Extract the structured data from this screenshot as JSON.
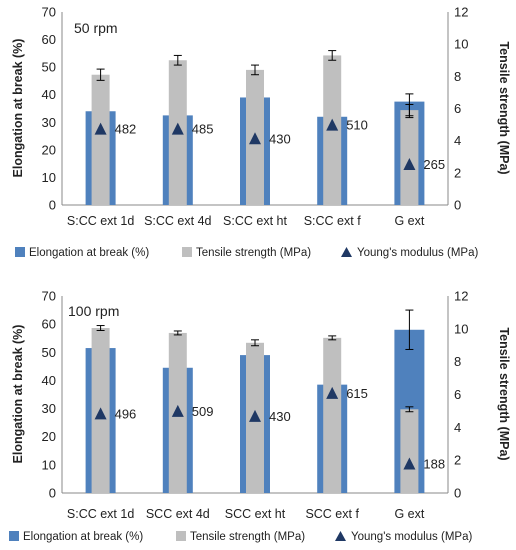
{
  "chart_data": [
    {
      "type": "bar",
      "annotation": "50 rpm",
      "categories": [
        "S:CC ext 1d",
        "S:CC ext 4d",
        "S:CC ext ht",
        "S:CC ext f",
        "G ext"
      ],
      "ylabel_left": "Elongation at break (%)",
      "ylabel_right": "Tensile strength (MPa)",
      "ylim_left": [
        0,
        70
      ],
      "yticks_left": [
        "0",
        "10",
        "20",
        "30",
        "40",
        "50",
        "60",
        "70"
      ],
      "ylim_right": [
        0,
        12
      ],
      "yticks_right": [
        "0",
        "2",
        "4",
        "6",
        "8",
        "10",
        "12"
      ],
      "grid": false,
      "legend_position": "bottom",
      "series": [
        {
          "name": "Elongation at break (%)",
          "axis": "left",
          "color": "#4f81bd",
          "values": [
            34,
            32.5,
            39,
            32,
            37.5
          ],
          "errors": [
            0,
            0,
            0,
            0,
            0
          ]
        },
        {
          "name": "Tensile strength (MPa)",
          "axis": "right",
          "color": "#bfbfbf",
          "values": [
            8.1,
            9.0,
            8.4,
            9.3,
            5.9
          ],
          "errors": [
            0.35,
            0.3,
            0.3,
            0.3,
            0.35
          ]
        },
        {
          "name": "Young's modulus (MPa)",
          "axis": "right",
          "color": "#1f3864",
          "marker": "triangle",
          "values": [
            4.75,
            4.75,
            4.15,
            5.0,
            2.55
          ],
          "labels": [
            "482",
            "485",
            "430",
            "510",
            "265"
          ]
        }
      ],
      "extra_error_bars": [
        {
          "series": "Elongation at break (%)",
          "category": "G ext",
          "center": 36,
          "error": 4.3
        }
      ]
    },
    {
      "type": "bar",
      "annotation": "100 rpm",
      "categories": [
        "S:CC ext 1d",
        "SCC ext 4d",
        "SCC ext ht",
        "SCC ext f",
        "G ext"
      ],
      "ylabel_left": "Elongation at break (%)",
      "ylabel_right": "Tensile strength (MPa)",
      "ylim_left": [
        0,
        70
      ],
      "yticks_left": [
        "0",
        "10",
        "20",
        "30",
        "40",
        "50",
        "60",
        "70"
      ],
      "ylim_right": [
        0,
        12
      ],
      "yticks_right": [
        "0",
        "2",
        "4",
        "6",
        "8",
        "10",
        "12"
      ],
      "grid": false,
      "legend_position": "bottom",
      "series": [
        {
          "name": "Elongation at break (%)",
          "axis": "left",
          "color": "#4f81bd",
          "values": [
            51.5,
            44.5,
            49,
            38.5,
            58
          ],
          "errors": [
            0,
            0,
            0,
            0,
            7
          ]
        },
        {
          "name": "Tensile strength (MPa)",
          "axis": "right",
          "color": "#bfbfbf",
          "values": [
            10.05,
            9.75,
            9.15,
            9.45,
            5.1
          ],
          "errors": [
            0.15,
            0.12,
            0.18,
            0.12,
            0.15
          ]
        },
        {
          "name": "Young's modulus (MPa)",
          "axis": "right",
          "color": "#1f3864",
          "marker": "triangle",
          "values": [
            4.85,
            5.0,
            4.7,
            6.1,
            1.8
          ],
          "labels": [
            "496",
            "509",
            "430",
            "615",
            "188"
          ]
        }
      ]
    }
  ]
}
